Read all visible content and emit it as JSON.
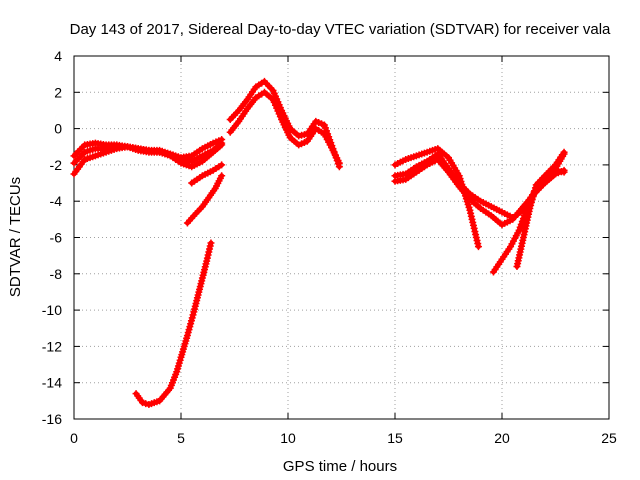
{
  "chart_data": {
    "type": "scatter",
    "title": "Day 143 of 2017, Sidereal Day-to-day VTEC variation (SDTVAR) for receiver vala",
    "xlabel": "GPS time / hours",
    "ylabel": "SDTVAR / TECUs",
    "xlim": [
      0,
      25
    ],
    "ylim": [
      -16,
      4
    ],
    "xticks": [
      0,
      5,
      10,
      15,
      20,
      25
    ],
    "yticks": [
      -16,
      -14,
      -12,
      -10,
      -8,
      -6,
      -4,
      -2,
      0,
      2,
      4
    ],
    "grid": true,
    "marker": "+",
    "color": "#ff0000",
    "series": [
      {
        "name": "arc-1",
        "x": [
          0,
          0.5,
          1,
          1.5,
          2,
          2.5,
          3,
          3.5,
          4,
          4.5,
          5,
          5.5,
          6,
          6.5,
          6.9
        ],
        "y": [
          -1.5,
          -0.9,
          -0.8,
          -0.9,
          -0.9,
          -1.0,
          -1.1,
          -1.2,
          -1.2,
          -1.4,
          -1.7,
          -1.8,
          -1.5,
          -1.2,
          -0.8
        ]
      },
      {
        "name": "arc-2",
        "x": [
          0,
          0.5,
          1,
          1.5,
          2,
          2.5,
          3,
          3.5,
          4,
          4.5,
          5,
          5.5,
          6,
          6.5,
          6.9
        ],
        "y": [
          -2.5,
          -1.7,
          -1.5,
          -1.3,
          -1.1,
          -1.0,
          -1.1,
          -1.2,
          -1.3,
          -1.4,
          -1.6,
          -1.5,
          -1.1,
          -0.8,
          -0.6
        ]
      },
      {
        "name": "arc-3",
        "x": [
          0,
          0.5,
          1,
          1.5,
          2,
          2.5,
          3,
          3.5,
          4,
          4.5,
          5,
          5.5,
          6,
          6.5,
          6.9
        ],
        "y": [
          -1.9,
          -1.3,
          -1.1,
          -1.1,
          -1.0,
          -1.0,
          -1.2,
          -1.3,
          -1.3,
          -1.5,
          -1.9,
          -2.1,
          -1.8,
          -1.3,
          -0.9
        ]
      },
      {
        "name": "arc-4",
        "x": [
          5.5,
          6.0,
          6.5,
          6.9
        ],
        "y": [
          -3.0,
          -2.6,
          -2.3,
          -2.0
        ]
      },
      {
        "name": "arc-5",
        "x": [
          5.3,
          5.6,
          6.0,
          6.3,
          6.6,
          6.9
        ],
        "y": [
          -5.2,
          -4.8,
          -4.3,
          -3.8,
          -3.3,
          -2.6
        ]
      },
      {
        "name": "arc-6",
        "x": [
          2.9,
          3.2,
          3.5,
          4.0,
          4.5,
          4.8,
          5.0,
          5.3,
          5.6,
          5.9,
          6.2,
          6.4
        ],
        "y": [
          -14.6,
          -15.1,
          -15.2,
          -15.0,
          -14.3,
          -13.4,
          -12.6,
          -11.4,
          -10.1,
          -8.7,
          -7.3,
          -6.3
        ]
      },
      {
        "name": "arc-7",
        "x": [
          7.3,
          7.7,
          8.1,
          8.5,
          8.9,
          9.3,
          9.7,
          10.1,
          10.5,
          10.9,
          11.3,
          11.7,
          12.1,
          12.4
        ],
        "y": [
          0.5,
          1.0,
          1.6,
          2.3,
          2.6,
          2.1,
          1.0,
          0.0,
          -0.4,
          -0.3,
          0.4,
          0.2,
          -1.1,
          -2.1
        ]
      },
      {
        "name": "arc-8",
        "x": [
          7.3,
          7.7,
          8.1,
          8.5,
          8.9,
          9.3,
          9.7,
          10.1,
          10.5,
          10.9,
          11.3,
          11.7,
          12.1,
          12.4
        ],
        "y": [
          -0.2,
          0.4,
          1.1,
          1.7,
          2.0,
          1.6,
          0.5,
          -0.5,
          -0.9,
          -0.7,
          0.0,
          -0.3,
          -1.2,
          -1.9
        ]
      },
      {
        "name": "arc-9",
        "x": [
          15,
          15.5,
          16,
          16.5,
          17,
          17.5,
          18,
          18.5,
          18.9
        ],
        "y": [
          -2.0,
          -1.7,
          -1.5,
          -1.3,
          -1.1,
          -1.6,
          -2.6,
          -4.5,
          -6.5
        ]
      },
      {
        "name": "arc-10",
        "x": [
          15,
          15.5,
          16,
          16.5,
          17,
          17.5,
          18,
          18.5,
          19,
          19.5,
          20,
          20.5,
          21,
          21.5,
          22,
          22.5,
          22.9
        ],
        "y": [
          -2.6,
          -2.5,
          -2.1,
          -1.8,
          -1.4,
          -2.2,
          -3.0,
          -3.6,
          -4.0,
          -4.3,
          -4.6,
          -4.9,
          -4.5,
          -3.5,
          -2.8,
          -2.2,
          -1.4
        ]
      },
      {
        "name": "arc-11",
        "x": [
          15,
          15.5,
          16,
          16.5,
          17,
          17.5,
          18,
          18.5,
          19,
          19.5,
          20,
          20.5,
          21,
          21.5,
          22,
          22.5,
          22.9
        ],
        "y": [
          -2.9,
          -2.8,
          -2.4,
          -2.0,
          -1.7,
          -2.4,
          -3.2,
          -3.9,
          -4.4,
          -4.8,
          -5.3,
          -5.0,
          -4.3,
          -3.6,
          -3.0,
          -2.5,
          -2.3
        ]
      },
      {
        "name": "arc-12",
        "x": [
          19.6,
          20.0,
          20.4,
          20.8,
          21.2,
          21.6,
          22.0,
          22.4,
          22.9
        ],
        "y": [
          -7.9,
          -7.2,
          -6.5,
          -5.6,
          -4.3,
          -3.4,
          -2.8,
          -2.3,
          -2.4
        ]
      },
      {
        "name": "arc-13",
        "x": [
          20.7,
          21.0,
          21.3,
          21.6,
          22.0,
          22.5,
          22.9
        ],
        "y": [
          -7.6,
          -6.0,
          -4.4,
          -3.1,
          -2.6,
          -2.0,
          -1.3
        ]
      }
    ]
  }
}
